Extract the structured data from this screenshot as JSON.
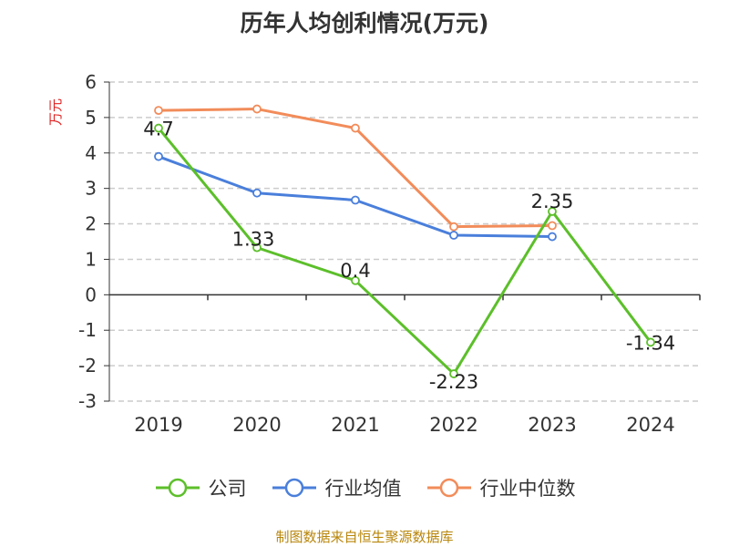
{
  "footer": "制图数据来自恒生聚源数据库",
  "chart_data": {
    "type": "line",
    "title": "历年人均创利情况(万元)",
    "ylabel": "万元",
    "xlabel": "",
    "categories": [
      "2019",
      "2020",
      "2021",
      "2022",
      "2023",
      "2024"
    ],
    "ylim": [
      -3,
      6
    ],
    "yticks": [
      -3,
      -2,
      -1,
      0,
      1,
      2,
      3,
      4,
      5,
      6
    ],
    "grid": true,
    "legend_position": "bottom",
    "series": [
      {
        "name": "公司",
        "color": "#5cbf2a",
        "values": [
          4.7,
          1.33,
          0.4,
          -2.23,
          2.35,
          -1.34
        ],
        "labels": [
          "4.7",
          "1.33",
          "0.4",
          "-2.23",
          "2.35",
          "-1.34"
        ]
      },
      {
        "name": "行业均值",
        "color": "#4a7fdb",
        "values": [
          3.9,
          2.87,
          2.67,
          1.68,
          1.64,
          null
        ]
      },
      {
        "name": "行业中位数",
        "color": "#f28c5a",
        "values": [
          5.2,
          5.24,
          4.7,
          1.92,
          1.95,
          null
        ]
      }
    ]
  }
}
